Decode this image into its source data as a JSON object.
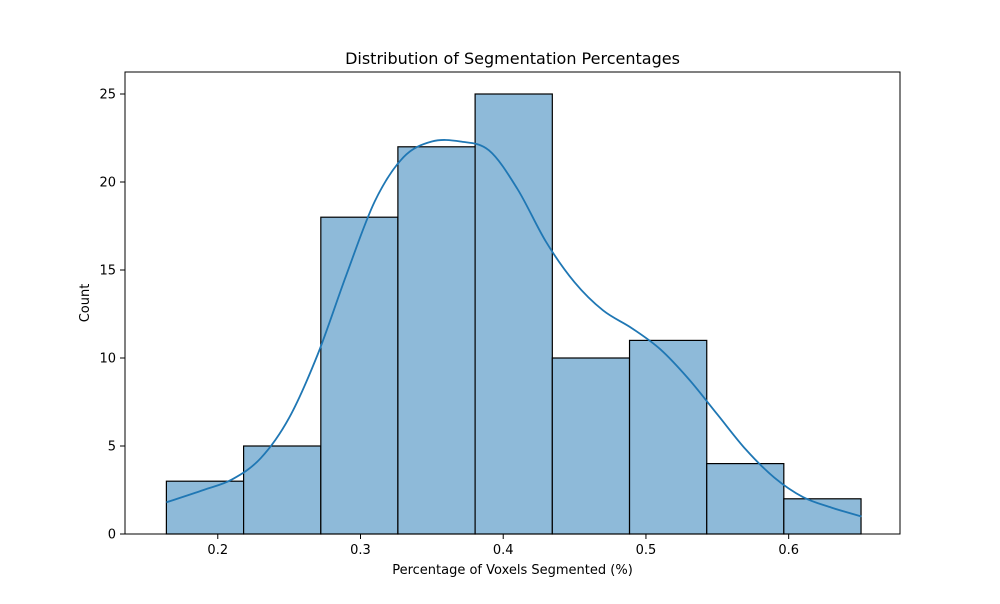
{
  "chart_data": {
    "type": "bar",
    "subtype": "histogram-with-kde",
    "title": "Distribution of Segmentation Percentages",
    "xlabel": "Percentage of Voxels Segmented (%)",
    "ylabel": "Count",
    "xlim": [
      0.135,
      0.678
    ],
    "ylim": [
      0,
      25
    ],
    "x_ticks": [
      0.2,
      0.3,
      0.4,
      0.5,
      0.6
    ],
    "x_tick_labels": [
      "0.2",
      "0.3",
      "0.4",
      "0.5",
      "0.6"
    ],
    "y_ticks": [
      0,
      5,
      10,
      15,
      20,
      25
    ],
    "y_tick_labels": [
      "0",
      "5",
      "10",
      "15",
      "20",
      "25"
    ],
    "bins": [
      {
        "x0": 0.164,
        "x1": 0.2181,
        "count": 3
      },
      {
        "x0": 0.2181,
        "x1": 0.2722,
        "count": 5
      },
      {
        "x0": 0.2722,
        "x1": 0.3262,
        "count": 18
      },
      {
        "x0": 0.3262,
        "x1": 0.3803,
        "count": 22
      },
      {
        "x0": 0.3803,
        "x1": 0.4344,
        "count": 25
      },
      {
        "x0": 0.4344,
        "x1": 0.4885,
        "count": 10
      },
      {
        "x0": 0.4885,
        "x1": 0.5426,
        "count": 11
      },
      {
        "x0": 0.5426,
        "x1": 0.5966,
        "count": 4
      },
      {
        "x0": 0.5966,
        "x1": 0.6507,
        "count": 2
      }
    ],
    "kde": {
      "x": [
        0.164,
        0.19,
        0.21,
        0.23,
        0.25,
        0.27,
        0.29,
        0.31,
        0.33,
        0.35,
        0.37,
        0.39,
        0.41,
        0.43,
        0.45,
        0.47,
        0.49,
        0.51,
        0.53,
        0.55,
        0.57,
        0.59,
        0.61,
        0.63,
        0.651
      ],
      "y": [
        1.8,
        2.5,
        3.1,
        4.3,
        6.6,
        10.2,
        14.7,
        18.9,
        21.4,
        22.3,
        22.3,
        21.8,
        19.6,
        16.6,
        14.3,
        12.7,
        11.7,
        10.5,
        8.8,
        6.8,
        4.8,
        3.2,
        2.1,
        1.5,
        1.0
      ]
    },
    "grid": false,
    "legend": "none",
    "colors": {
      "bar_fill": "#8ebad9",
      "bar_edge": "#000000",
      "kde_line": "#1f77b4",
      "axes": "#000000"
    }
  }
}
